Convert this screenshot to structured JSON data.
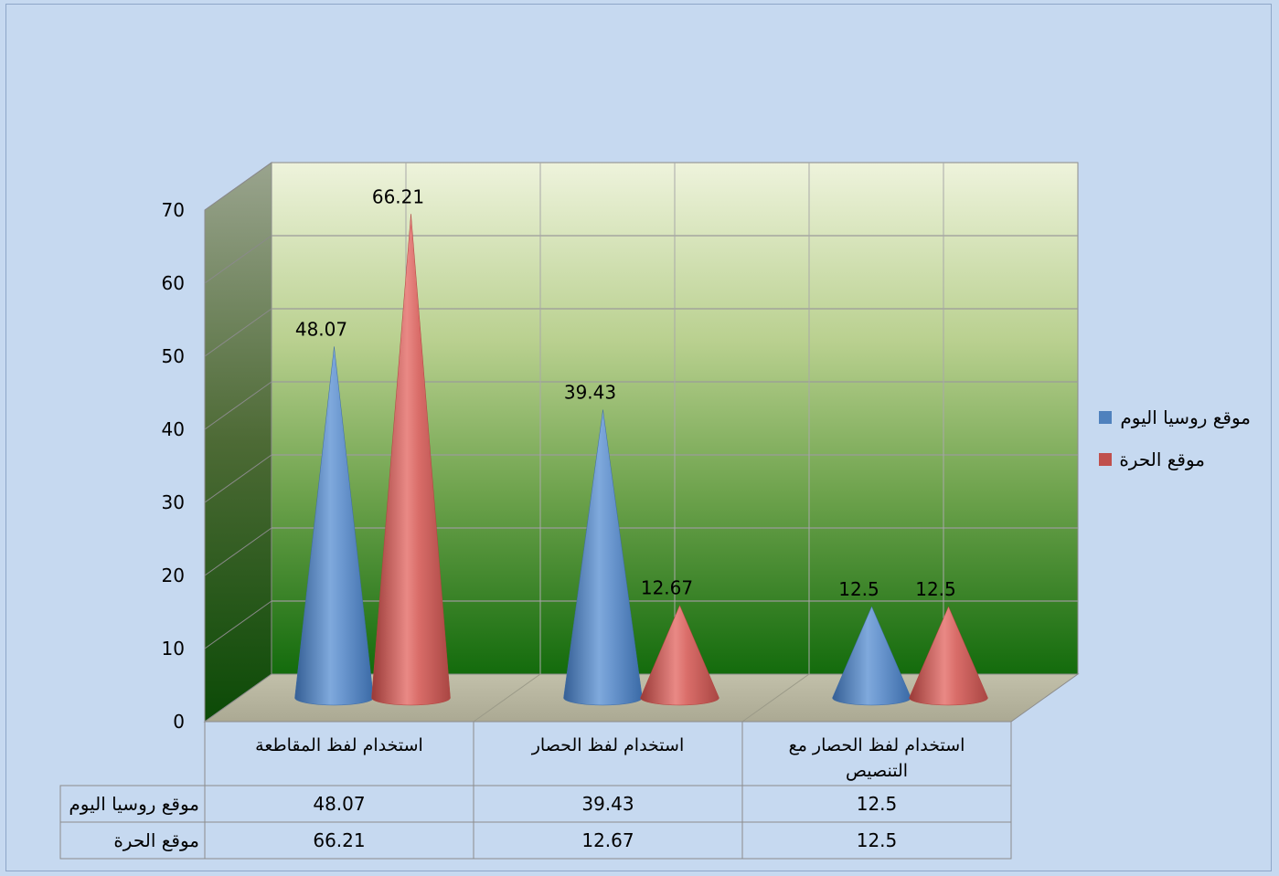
{
  "chart_data": {
    "type": "bar",
    "shape": "cone-3d",
    "categories": [
      [
        "استخدام لفظ المقاطعة"
      ],
      [
        "استخدام لفظ الحصار"
      ],
      [
        "استخدام لفظ الحصار مع",
        "التنصيص"
      ]
    ],
    "series": [
      {
        "name": "موقع روسيا اليوم",
        "color": "#4f81bd",
        "values": [
          48.07,
          39.43,
          12.5
        ],
        "labels": [
          "48.07",
          "39.43",
          "12.5"
        ]
      },
      {
        "name": "موقع الحرة",
        "color": "#c0504d",
        "values": [
          66.21,
          12.67,
          12.5
        ],
        "labels": [
          "66.21",
          "12.67",
          "12.5"
        ]
      }
    ],
    "ylim": [
      0,
      70
    ],
    "yticks": [
      "0",
      "10",
      "20",
      "30",
      "40",
      "50",
      "60",
      "70"
    ],
    "grid": true,
    "legend": "right",
    "data_table": true
  }
}
